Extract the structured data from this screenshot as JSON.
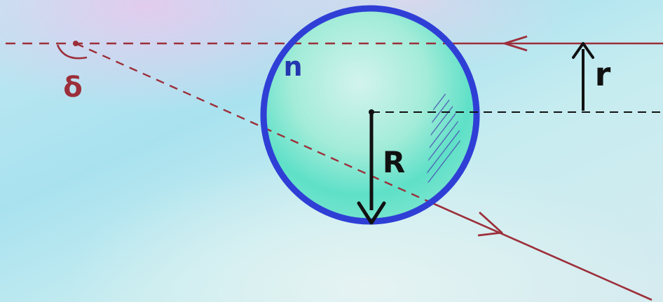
{
  "labels": {
    "refractive_index": "n",
    "sphere_radius": "R",
    "ray_offset": "r",
    "deviation_angle": "δ"
  },
  "colors": {
    "ray": "#9c2f3a",
    "sphere_outline": "#2f3fd6",
    "annotation": "#111111",
    "hatch": "#4a55b0",
    "index_label": "#2436b0"
  }
}
